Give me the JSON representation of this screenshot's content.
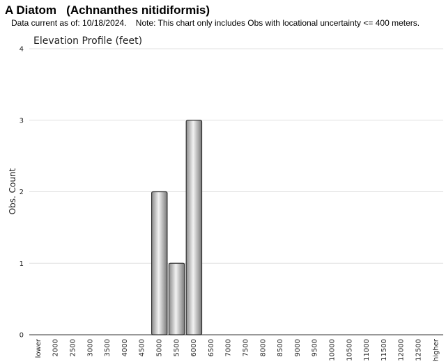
{
  "header": {
    "title": "A Diatom   (Achnanthes nitidiformis)",
    "subtitle": "Data current as of: 10/18/2024.    Note: This chart only includes Obs with locational uncertainty <= 400 meters."
  },
  "chart_data": {
    "type": "bar",
    "title": "Elevation Profile (feet)",
    "xlabel": "",
    "ylabel": "Obs. Count",
    "ylim": [
      0,
      4
    ],
    "yticks": [
      0,
      1,
      2,
      3,
      4
    ],
    "grid": true,
    "categories": [
      "lower",
      "2000",
      "2500",
      "3000",
      "3500",
      "4000",
      "4500",
      "5000",
      "5500",
      "6000",
      "6500",
      "7000",
      "7500",
      "8000",
      "8500",
      "9000",
      "9500",
      "10000",
      "10500",
      "11000",
      "11500",
      "12000",
      "12500",
      "higher"
    ],
    "values": [
      0,
      0,
      0,
      0,
      0,
      0,
      0,
      2,
      1,
      3,
      0,
      0,
      0,
      0,
      0,
      0,
      0,
      0,
      0,
      0,
      0,
      0,
      0,
      0
    ],
    "bar_color": "#b8b8b8",
    "bar_edge_color": "#333333",
    "grid_color": "#e0e0e0"
  }
}
